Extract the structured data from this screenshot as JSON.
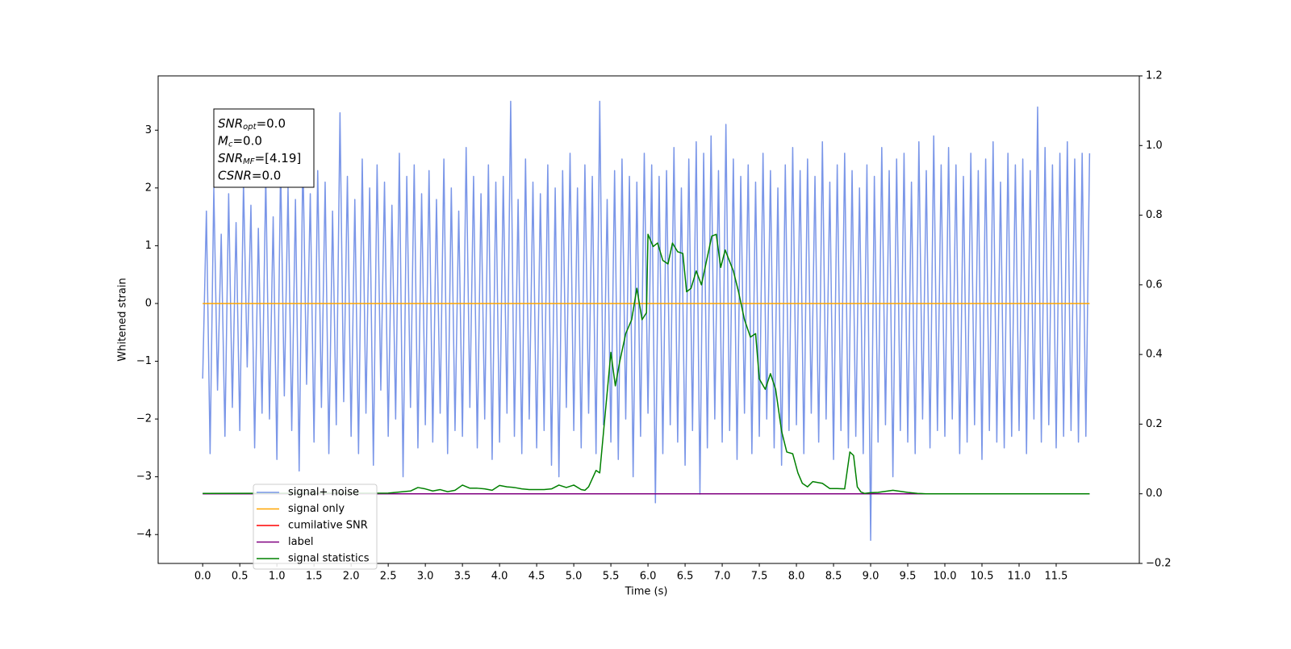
{
  "chart_data": {
    "type": "line",
    "xlabel": "Time (s)",
    "ylabel": "Whitened strain",
    "xlim": [
      -0.6,
      12.62
    ],
    "ylim": [
      -4.5,
      3.94
    ],
    "y2lim": [
      -0.2,
      1.2
    ],
    "xticks": [
      {
        "value": 0,
        "label": "0.0"
      },
      0.5,
      {
        "value": 1,
        "label": "1.0"
      },
      1.5,
      {
        "value": 2,
        "label": "2.0"
      },
      2.5,
      {
        "value": 3,
        "label": "3.0"
      },
      3.5,
      {
        "value": 4,
        "label": "4.0"
      },
      4.5,
      {
        "value": 5,
        "label": "5.0"
      },
      5.5,
      {
        "value": 6,
        "label": "6.0"
      },
      6.5,
      {
        "value": 7,
        "label": "7.0"
      },
      7.5,
      {
        "value": 8,
        "label": "8.0"
      },
      8.5,
      {
        "value": 9,
        "label": "9.0"
      },
      9.5,
      {
        "value": 10,
        "label": "10.0"
      },
      10.5,
      {
        "value": 11,
        "label": "11.0"
      },
      11.5
    ],
    "yticks": [
      {
        "value": -4,
        "label": "−4"
      },
      {
        "value": -3,
        "label": "−3"
      },
      {
        "value": -2,
        "label": "−2"
      },
      {
        "value": -1,
        "label": "−1"
      },
      0,
      1,
      2,
      3
    ],
    "y2ticks": [
      {
        "value": -0.2,
        "label": "−0.2"
      },
      {
        "value": 0,
        "label": "0.0"
      },
      0.2,
      0.4,
      0.6,
      0.8,
      {
        "value": 1,
        "label": "1.0"
      },
      1.2
    ],
    "legend": "lower left",
    "annotation": [
      {
        "name": "SNR",
        "sub": "opt",
        "text": "=0.0"
      },
      {
        "name": "M",
        "sub": "c",
        "text": "=0.0"
      },
      {
        "name": "SNR",
        "sub": "MF",
        "text": "=[4.19]"
      },
      {
        "name": "CSNR",
        "text": "=0.0"
      }
    ],
    "series": [
      {
        "name": "signal+ noise",
        "color": "#7a96e8",
        "axis": "y",
        "x": [
          0,
          0.05,
          0.1,
          0.15,
          0.2,
          0.25,
          0.3,
          0.35,
          0.4,
          0.45,
          0.5,
          0.55,
          0.6,
          0.65,
          0.7,
          0.75,
          0.8,
          0.85,
          0.9,
          0.95,
          1,
          1.05,
          1.1,
          1.15,
          1.2,
          1.25,
          1.3,
          1.35,
          1.4,
          1.45,
          1.5,
          1.55,
          1.6,
          1.65,
          1.7,
          1.75,
          1.8,
          1.85,
          1.9,
          1.95,
          2,
          2.05,
          2.1,
          2.15,
          2.2,
          2.25,
          2.3,
          2.35,
          2.4,
          2.45,
          2.5,
          2.55,
          2.6,
          2.65,
          2.7,
          2.75,
          2.8,
          2.85,
          2.9,
          2.95,
          3,
          3.05,
          3.1,
          3.15,
          3.2,
          3.25,
          3.3,
          3.35,
          3.4,
          3.45,
          3.5,
          3.55,
          3.6,
          3.65,
          3.7,
          3.75,
          3.8,
          3.85,
          3.9,
          3.95,
          4,
          4.05,
          4.1,
          4.15,
          4.2,
          4.25,
          4.3,
          4.35,
          4.4,
          4.45,
          4.5,
          4.55,
          4.6,
          4.65,
          4.7,
          4.75,
          4.8,
          4.85,
          4.9,
          4.95,
          5,
          5.05,
          5.1,
          5.15,
          5.2,
          5.25,
          5.3,
          5.35,
          5.4,
          5.45,
          5.5,
          5.55,
          5.6,
          5.65,
          5.7,
          5.75,
          5.8,
          5.85,
          5.9,
          5.95,
          6,
          6.05,
          6.1,
          6.15,
          6.2,
          6.25,
          6.3,
          6.35,
          6.4,
          6.45,
          6.5,
          6.55,
          6.6,
          6.65,
          6.7,
          6.75,
          6.8,
          6.85,
          6.9,
          6.95,
          7,
          7.05,
          7.1,
          7.15,
          7.2,
          7.25,
          7.3,
          7.35,
          7.4,
          7.45,
          7.5,
          7.55,
          7.6,
          7.65,
          7.7,
          7.75,
          7.8,
          7.85,
          7.9,
          7.95,
          8,
          8.05,
          8.1,
          8.15,
          8.2,
          8.25,
          8.3,
          8.35,
          8.4,
          8.45,
          8.5,
          8.55,
          8.6,
          8.65,
          8.7,
          8.75,
          8.8,
          8.85,
          8.9,
          8.95,
          9,
          9.05,
          9.1,
          9.15,
          9.2,
          9.25,
          9.3,
          9.35,
          9.4,
          9.45,
          9.5,
          9.55,
          9.6,
          9.65,
          9.7,
          9.75,
          9.8,
          9.85,
          9.9,
          9.95,
          10,
          10.05,
          10.1,
          10.15,
          10.2,
          10.25,
          10.3,
          10.35,
          10.4,
          10.45,
          10.5,
          10.55,
          10.6,
          10.65,
          10.7,
          10.75,
          10.8,
          10.85,
          10.9,
          10.95,
          11,
          11.05,
          11.1,
          11.15,
          11.2,
          11.25,
          11.3,
          11.35,
          11.4,
          11.45,
          11.5,
          11.55,
          11.6,
          11.65,
          11.7,
          11.75,
          11.8,
          11.85,
          11.9,
          11.95
        ],
        "values": [
          -1.3,
          1.6,
          -2.6,
          2.0,
          -1.5,
          1.2,
          -2.3,
          1.9,
          -1.8,
          1.4,
          -2.2,
          2.1,
          -1.1,
          1.7,
          -2.5,
          1.3,
          -1.9,
          2.2,
          -2.0,
          1.5,
          -2.7,
          2.4,
          -1.6,
          2.0,
          -2.2,
          1.8,
          -2.9,
          2.6,
          -1.4,
          1.9,
          -2.4,
          2.3,
          -1.8,
          2.1,
          -2.6,
          1.6,
          -2.1,
          3.3,
          -1.7,
          2.2,
          -2.3,
          1.8,
          -2.6,
          2.5,
          -1.9,
          2.0,
          -2.8,
          2.4,
          -1.5,
          2.1,
          -2.3,
          1.7,
          -2.0,
          2.6,
          -3.0,
          2.2,
          -1.8,
          2.4,
          -2.5,
          1.9,
          -2.1,
          2.3,
          -2.4,
          1.8,
          -1.9,
          2.5,
          -2.6,
          2.0,
          -2.2,
          1.6,
          -2.3,
          2.7,
          -1.8,
          2.2,
          -2.5,
          1.9,
          -2.0,
          2.4,
          -2.7,
          2.1,
          -2.4,
          2.2,
          -1.9,
          3.5,
          -2.3,
          1.8,
          -2.6,
          2.5,
          -2.0,
          2.1,
          -2.5,
          1.9,
          -2.2,
          2.4,
          -2.8,
          2.0,
          -3.0,
          2.3,
          -1.8,
          2.6,
          -2.2,
          2.0,
          -2.5,
          2.4,
          -1.9,
          2.2,
          -2.6,
          3.5,
          -2.1,
          1.8,
          -2.4,
          2.3,
          -2.7,
          2.5,
          -2.0,
          2.2,
          -3.0,
          2.1,
          -2.3,
          2.6,
          -1.9,
          2.4,
          -3.45,
          2.2,
          -2.6,
          2.3,
          -2.1,
          2.7,
          -2.4,
          2.0,
          -2.8,
          2.5,
          -2.2,
          2.8,
          -3.3,
          2.6,
          -2.5,
          2.9,
          -2.0,
          2.3,
          -2.4,
          3.1,
          -2.2,
          2.5,
          -2.7,
          2.2,
          -1.9,
          2.4,
          -2.6,
          2.1,
          -2.3,
          2.6,
          -2.0,
          2.3,
          -2.5,
          2.0,
          -2.8,
          2.4,
          -2.2,
          2.7,
          -2.1,
          2.3,
          -2.6,
          2.5,
          -1.9,
          2.2,
          -2.4,
          2.8,
          -2.0,
          2.1,
          -2.7,
          2.4,
          -2.2,
          2.6,
          -2.5,
          2.3,
          -2.3,
          2.0,
          -2.6,
          2.4,
          -4.1,
          2.2,
          -2.4,
          2.7,
          -2.1,
          2.3,
          -3.0,
          2.5,
          -2.2,
          2.6,
          -2.4,
          2.1,
          -2.6,
          2.8,
          -2.0,
          2.3,
          -2.5,
          2.9,
          -2.2,
          2.4,
          -2.3,
          2.7,
          -2.0,
          2.4,
          -2.6,
          2.2,
          -2.4,
          2.6,
          -2.1,
          2.3,
          -2.7,
          2.5,
          -2.2,
          2.8,
          -2.4,
          2.1,
          -2.5,
          2.6,
          -2.3,
          2.4,
          -2.2,
          2.5,
          -2.6,
          2.3,
          -2.0,
          3.4,
          -2.4,
          2.7,
          -2.1,
          2.4,
          -2.5,
          2.6,
          -2.3,
          2.8,
          -2.2,
          2.5,
          -2.4,
          2.6,
          -2.3,
          2.6
        ]
      },
      {
        "name": "signal only",
        "color": "#ffa500",
        "axis": "y",
        "x": [
          0,
          11.95
        ],
        "values": [
          0,
          0
        ]
      },
      {
        "name": "cumilative SNR",
        "color": "#ff0000",
        "axis": "y2",
        "x": [],
        "values": []
      },
      {
        "name": "label",
        "color": "#800080",
        "axis": "y2",
        "x": [
          0,
          11.95
        ],
        "values": [
          0,
          0
        ]
      },
      {
        "name": "signal statistics",
        "color": "#008000",
        "axis": "y2",
        "x": [
          0,
          2.5,
          2.8,
          2.9,
          3.0,
          3.1,
          3.2,
          3.3,
          3.4,
          3.5,
          3.6,
          3.7,
          3.8,
          3.9,
          4.0,
          4.1,
          4.2,
          4.3,
          4.4,
          4.5,
          4.6,
          4.7,
          4.8,
          4.9,
          5.0,
          5.1,
          5.15,
          5.2,
          5.3,
          5.35,
          5.5,
          5.56,
          5.62,
          5.7,
          5.78,
          5.85,
          5.92,
          5.98,
          6.0,
          6.07,
          6.13,
          6.2,
          6.27,
          6.33,
          6.4,
          6.47,
          6.52,
          6.58,
          6.65,
          6.72,
          6.8,
          6.86,
          6.92,
          6.98,
          7.04,
          7.15,
          7.22,
          7.3,
          7.38,
          7.45,
          7.5,
          7.58,
          7.65,
          7.72,
          7.8,
          7.87,
          7.95,
          8.02,
          8.08,
          8.15,
          8.22,
          8.35,
          8.45,
          8.55,
          8.65,
          8.72,
          8.77,
          8.82,
          8.87,
          8.92,
          9.0,
          9.1,
          9.3,
          9.5,
          9.63,
          9.75,
          10.0,
          11.95
        ],
        "values": [
          0.001,
          0.002,
          0.008,
          0.018,
          0.014,
          0.008,
          0.012,
          0.006,
          0.01,
          0.025,
          0.016,
          0.016,
          0.014,
          0.01,
          0.024,
          0.02,
          0.018,
          0.014,
          0.012,
          0.012,
          0.012,
          0.014,
          0.025,
          0.018,
          0.025,
          0.012,
          0.01,
          0.02,
          0.067,
          0.06,
          0.406,
          0.31,
          0.38,
          0.46,
          0.5,
          0.59,
          0.5,
          0.52,
          0.745,
          0.71,
          0.72,
          0.67,
          0.66,
          0.72,
          0.695,
          0.69,
          0.58,
          0.59,
          0.64,
          0.6,
          0.68,
          0.74,
          0.745,
          0.65,
          0.7,
          0.64,
          0.58,
          0.5,
          0.45,
          0.46,
          0.33,
          0.3,
          0.345,
          0.3,
          0.18,
          0.12,
          0.115,
          0.06,
          0.03,
          0.02,
          0.035,
          0.03,
          0.015,
          0.015,
          0.014,
          0.12,
          0.11,
          0.02,
          0.005,
          0.001,
          0.003,
          0.004,
          0.01,
          0.004,
          0.001,
          0.0,
          0.0,
          0.0
        ]
      }
    ]
  }
}
